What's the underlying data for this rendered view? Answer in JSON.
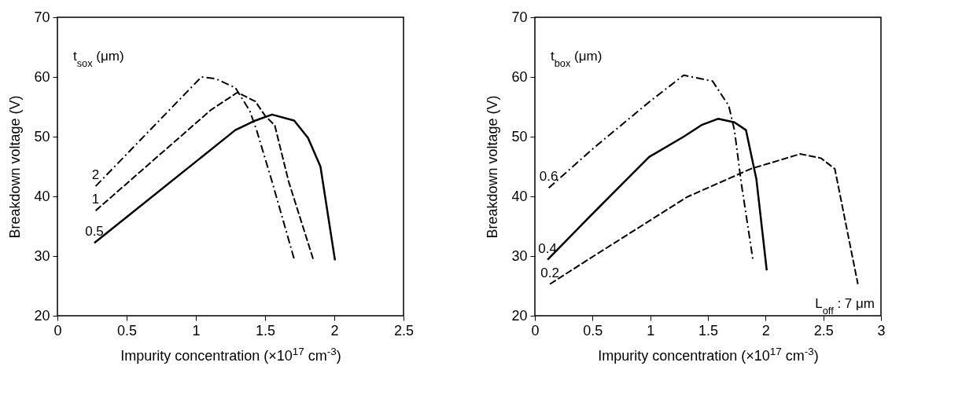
{
  "chart_data": [
    {
      "type": "line",
      "xlabel": "Impurity concentration (×10$^{17}$ cm$^{-3}$)",
      "ylabel": "Breakdown voltage (V)",
      "legend_title": "t$_{sox}$ (μm)",
      "xlim": [
        0,
        2.5
      ],
      "xticks": [
        0,
        0.5,
        1,
        1.5,
        2,
        2.5
      ],
      "ylim": [
        20,
        70
      ],
      "yticks": [
        20,
        30,
        40,
        50,
        60,
        70
      ],
      "grid": false,
      "series": [
        {
          "name": "2",
          "color": "#000000",
          "line_style": "dashdot",
          "x": [
            0.276,
            1.04,
            1.145,
            1.285,
            1.39,
            1.44,
            1.55,
            1.71
          ],
          "values": [
            41.7,
            60,
            59.7,
            58.2,
            54.3,
            51,
            42.5,
            29.5
          ]
        },
        {
          "name": "1",
          "color": "#000000",
          "line_style": "dashed",
          "x": [
            0.276,
            1.11,
            1.3,
            1.43,
            1.5,
            1.57,
            1.67,
            1.85
          ],
          "values": [
            37.6,
            54.5,
            57.4,
            55.9,
            53.5,
            51.9,
            42.5,
            29.3
          ]
        },
        {
          "name": "0.5",
          "color": "#000000",
          "line_style": "solid",
          "x": [
            0.267,
            1.285,
            1.43,
            1.55,
            1.71,
            1.81,
            1.9,
            2.005
          ],
          "values": [
            32.2,
            51.1,
            52.7,
            53.7,
            52.7,
            49.8,
            45,
            29.3
          ]
        }
      ]
    },
    {
      "type": "line",
      "xlabel": "Impurity concentration (×10$^{17}$ cm$^{-3}$)",
      "ylabel": "Breakdown voltage (V)",
      "legend_title": "t$_{box}$ (μm)",
      "annotations": [
        "L$_{off}$ : 7 μm"
      ],
      "xlim": [
        0,
        3
      ],
      "xticks": [
        0,
        0.5,
        1,
        1.5,
        2,
        2.5,
        3
      ],
      "ylim": [
        20,
        70
      ],
      "yticks": [
        20,
        30,
        40,
        50,
        60,
        70
      ],
      "grid": false,
      "series": [
        {
          "name": "0.6",
          "color": "#000000",
          "line_style": "dashdot",
          "x": [
            0.12,
            0.51,
            0.99,
            1.29,
            1.54,
            1.68,
            1.73,
            1.79,
            1.89
          ],
          "values": [
            41.4,
            48.1,
            55.8,
            60.3,
            59.3,
            55.2,
            51.1,
            42.1,
            29.4
          ]
        },
        {
          "name": "0.4",
          "color": "#000000",
          "line_style": "solid",
          "x": [
            0.11,
            0.49,
            0.99,
            1.29,
            1.45,
            1.59,
            1.73,
            1.83,
            1.92,
            2.01
          ],
          "values": [
            29.4,
            36.9,
            46.6,
            50,
            52,
            53,
            52.4,
            51.1,
            42.9,
            27.6
          ]
        },
        {
          "name": "0.2",
          "color": "#000000",
          "line_style": "dashed",
          "x": [
            0.13,
            0.51,
            1.32,
            1.87,
            2.3,
            2.48,
            2.6,
            2.8
          ],
          "values": [
            25.3,
            30,
            39.9,
            44.6,
            47.1,
            46.4,
            44.6,
            25.3
          ]
        }
      ]
    }
  ]
}
